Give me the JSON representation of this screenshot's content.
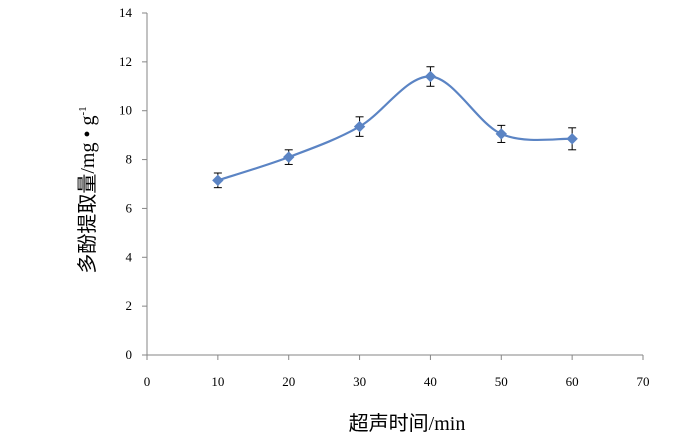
{
  "chart_data": {
    "type": "line",
    "title": "",
    "xlabel": "超声时间/min",
    "ylabel": {
      "main": "多酚提取量/mg • g",
      "superscript": "-1"
    },
    "xlim": [
      0,
      70
    ],
    "ylim": [
      0,
      14
    ],
    "xticks": [
      0,
      10,
      20,
      30,
      40,
      50,
      60,
      70
    ],
    "yticks": [
      0,
      2,
      4,
      6,
      8,
      10,
      12,
      14
    ],
    "grid": false,
    "legend": "none",
    "smooth": true,
    "series": [
      {
        "x": [
          10,
          20,
          30,
          40,
          50,
          60
        ],
        "y": [
          7.15,
          8.1,
          9.35,
          11.4,
          9.05,
          8.85
        ],
        "error": [
          0.3,
          0.3,
          0.4,
          0.4,
          0.35,
          0.45
        ],
        "color": "#5b84c4",
        "marker": "diamond"
      }
    ]
  }
}
